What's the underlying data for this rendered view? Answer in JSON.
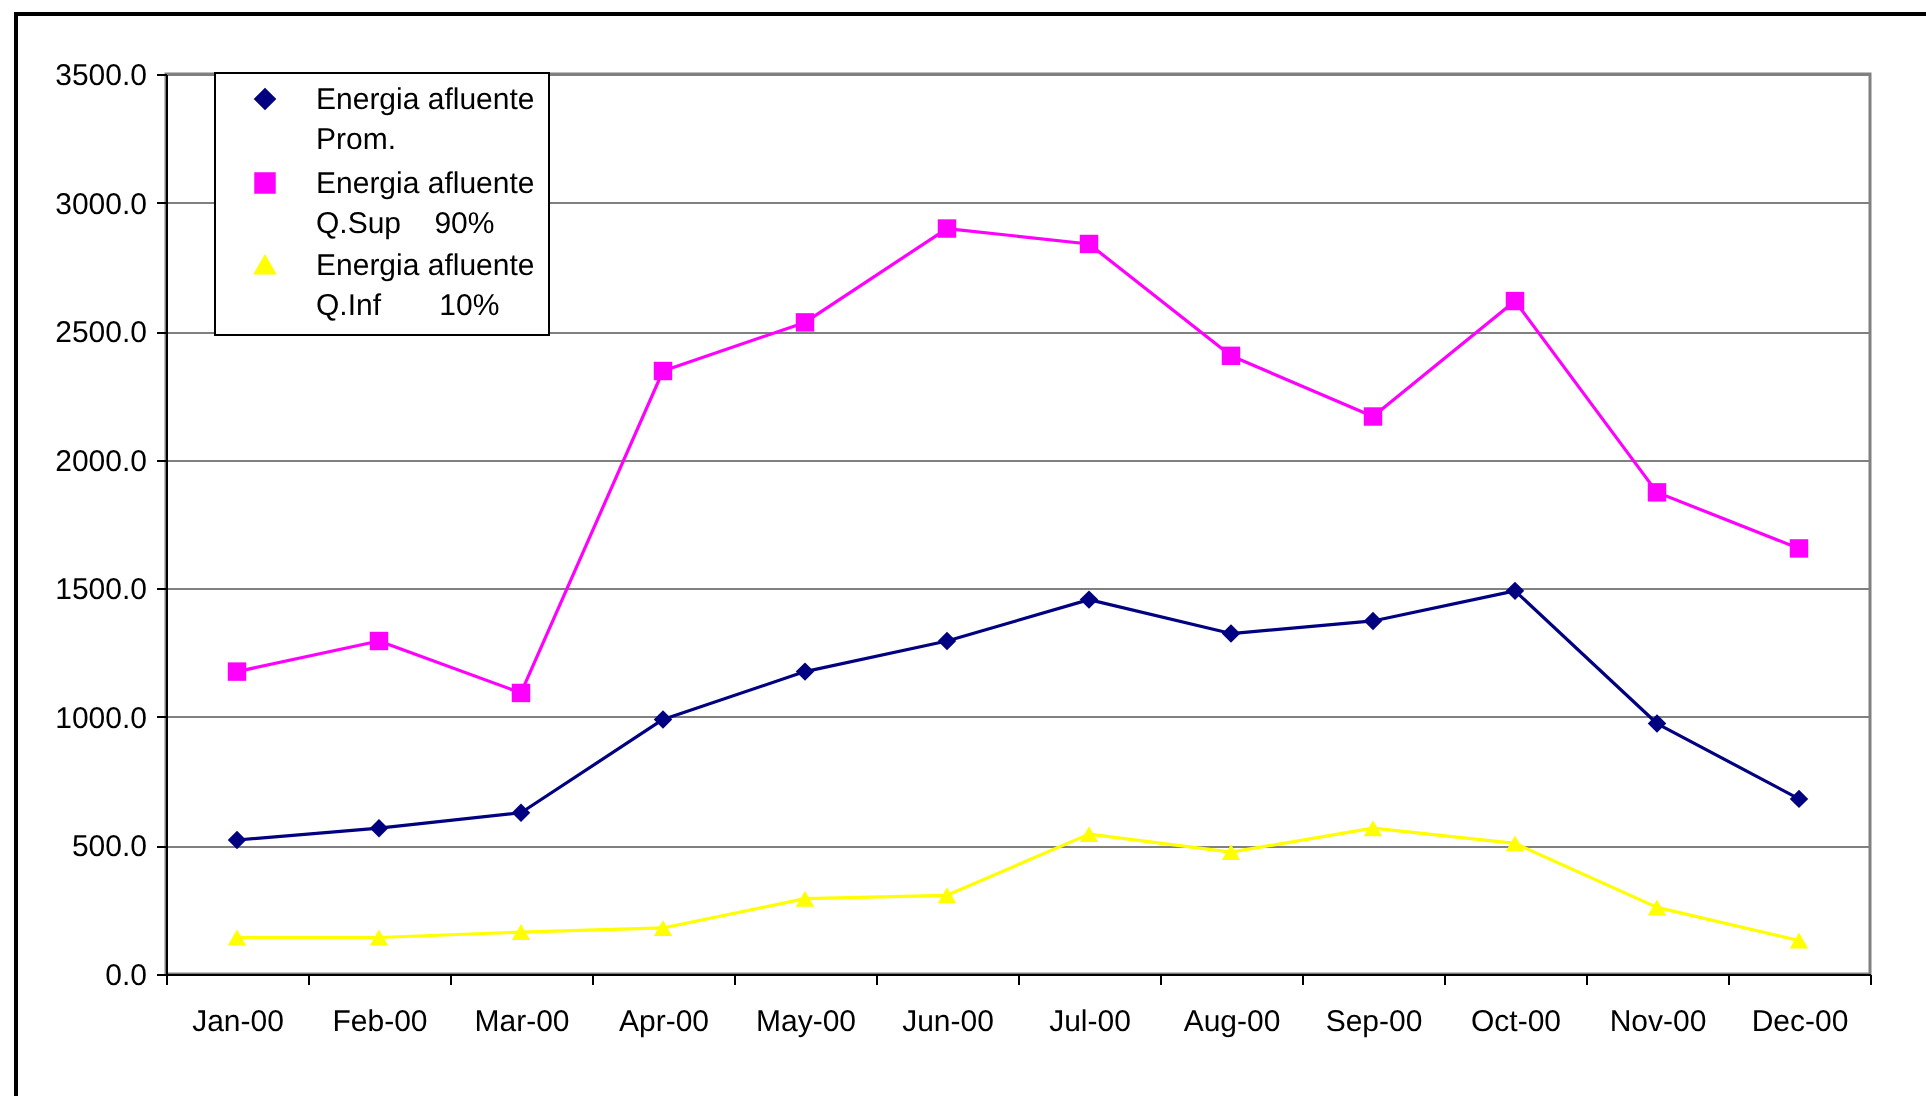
{
  "chart_data": {
    "type": "line",
    "categories": [
      "Jan-00",
      "Feb-00",
      "Mar-00",
      "Apr-00",
      "May-00",
      "Jun-00",
      "Jul-00",
      "Aug-00",
      "Sep-00",
      "Oct-00",
      "Nov-00",
      "Dec-00"
    ],
    "series": [
      {
        "name": "Energia afluente\nProm.",
        "color": "#000080",
        "marker": "diamond",
        "values": [
          521,
          567,
          627,
          990,
          1176,
          1295,
          1456,
          1324,
          1373,
          1490,
          974,
          681
        ]
      },
      {
        "name": "Energia afluente\nQ.Sup    90%",
        "color": "#ff00ff",
        "marker": "square",
        "values": [
          1176,
          1295,
          1093,
          2345,
          2534,
          2899,
          2839,
          2404,
          2168,
          2617,
          1873,
          1655
        ]
      },
      {
        "name": "Energia afluente\nQ.Inf       10%",
        "color": "#ffff00",
        "marker": "triangle",
        "values": [
          142,
          142,
          163,
          179,
          293,
          306,
          544,
          474,
          567,
          508,
          259,
          130
        ]
      }
    ],
    "ylim": [
      0,
      3500
    ],
    "yticks": [
      {
        "value": 0,
        "label": "0.0"
      },
      {
        "value": 500,
        "label": "500.0"
      },
      {
        "value": 1000,
        "label": "1000.0"
      },
      {
        "value": 1500,
        "label": "1500.0"
      },
      {
        "value": 2000,
        "label": "2000.0"
      },
      {
        "value": 2500,
        "label": "2500.0"
      },
      {
        "value": 3000,
        "label": "3000.0"
      },
      {
        "value": 3500,
        "label": "3500.0"
      }
    ],
    "grid": "y",
    "legend": "top left"
  }
}
